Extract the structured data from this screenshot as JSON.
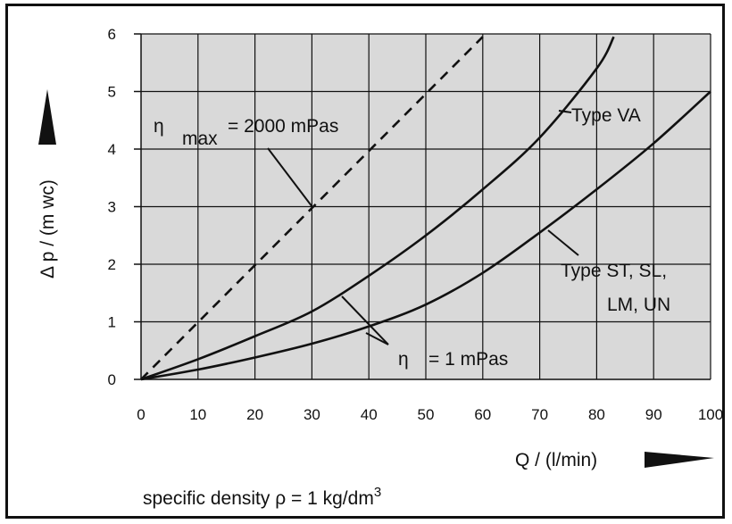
{
  "chart_data": {
    "type": "line",
    "x": [
      0,
      10,
      20,
      30,
      40,
      50,
      60,
      70,
      80,
      90,
      100
    ],
    "xlim": [
      0,
      100
    ],
    "ylim": [
      0,
      6
    ],
    "x_ticks": [
      "0",
      "10",
      "20",
      "30",
      "40",
      "50",
      "60",
      "70",
      "80",
      "90",
      "100"
    ],
    "y_ticks": [
      "0",
      "1",
      "2",
      "3",
      "4",
      "5",
      "6"
    ],
    "xlabel": "Q  / (l/min)",
    "ylabel": "Δ p  / (m wc)",
    "grid": true,
    "background": "#d9d9d9",
    "series": [
      {
        "name": "Type VA",
        "style": "solid",
        "x": [
          0,
          10,
          20,
          30,
          40,
          50,
          60,
          70,
          80,
          83
        ],
        "values": [
          0,
          0.35,
          0.75,
          1.18,
          1.8,
          2.5,
          3.3,
          4.2,
          5.4,
          5.95
        ]
      },
      {
        "name": "Type ST, SL, LM, UN",
        "style": "solid",
        "x": [
          0,
          10,
          20,
          30,
          40,
          50,
          60,
          70,
          80,
          90,
          100
        ],
        "values": [
          0,
          0.17,
          0.38,
          0.62,
          0.92,
          1.3,
          1.85,
          2.55,
          3.3,
          4.1,
          5.0
        ]
      },
      {
        "name": "",
        "style": "dashed",
        "x": [
          0,
          60
        ],
        "values": [
          0,
          5.95
        ]
      }
    ],
    "annotations": {
      "eta_symbol": "η",
      "eta_max_sub": "max",
      "eta_max_value": "= 2000 mPas",
      "eta_1_value": "= 1 mPas",
      "label_va": "Type VA",
      "label_st_line1": "Type ST, SL,",
      "label_st_line2": "LM, UN"
    },
    "footnote": {
      "text": "specific density ρ  = 1 kg/dm",
      "superscript": "3"
    }
  }
}
